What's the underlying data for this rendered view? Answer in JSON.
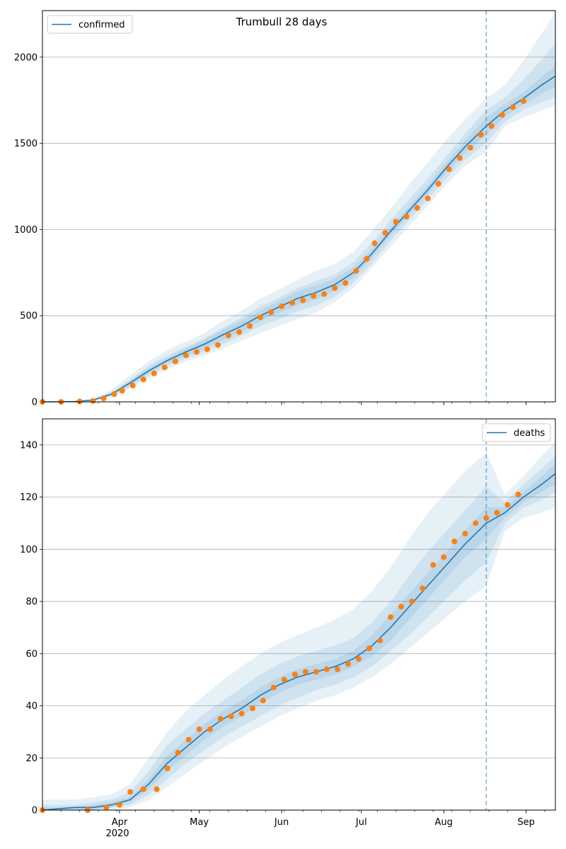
{
  "title": "Trumbull 28 days",
  "colors": {
    "model_line": "#1f77b4",
    "observed": "#ff7f0e",
    "band": "#1f77b4",
    "grid": "#b0b0b0",
    "forecast_marker": "#1f77b4"
  },
  "x_axis": {
    "tick_labels": [
      "Apr",
      "May",
      "Jun",
      "Jul",
      "Aug",
      "Sep"
    ],
    "year_label": "2020"
  },
  "chart_data": [
    {
      "type": "line",
      "legend": "confirmed",
      "legend_position": "top-left",
      "x_range": [
        "2020-03-03",
        "2020-09-12"
      ],
      "ylim": [
        0,
        2270
      ],
      "yticks": [
        0,
        500,
        1000,
        1500,
        2000
      ],
      "grid": "horizontal",
      "forecast_start": "2020-08-17",
      "model": {
        "x": [
          "2020-03-03",
          "2020-03-15",
          "2020-03-22",
          "2020-03-29",
          "2020-04-05",
          "2020-04-12",
          "2020-04-19",
          "2020-04-26",
          "2020-05-03",
          "2020-05-10",
          "2020-05-17",
          "2020-05-24",
          "2020-05-31",
          "2020-06-07",
          "2020-06-14",
          "2020-06-21",
          "2020-06-28",
          "2020-07-05",
          "2020-07-12",
          "2020-07-19",
          "2020-07-26",
          "2020-08-02",
          "2020-08-09",
          "2020-08-17",
          "2020-08-24",
          "2020-08-31",
          "2020-09-07",
          "2020-09-12"
        ],
        "y": [
          0,
          2,
          10,
          45,
          110,
          180,
          240,
          290,
          335,
          390,
          440,
          500,
          550,
          600,
          635,
          680,
          750,
          860,
          990,
          1110,
          1230,
          1360,
          1480,
          1600,
          1690,
          1760,
          1840,
          1890
        ],
        "bands": [
          {
            "lower": [
              0,
              0,
              5,
              25,
              75,
              135,
              190,
              235,
              270,
              310,
              355,
              400,
              440,
              480,
              520,
              580,
              660,
              780,
              900,
              1020,
              1140,
              1260,
              1370,
              1450,
              1600,
              1650,
              1690,
              1720
            ],
            "upper": [
              0,
              4,
              20,
              70,
              155,
              235,
              300,
              350,
              400,
              470,
              530,
              600,
              650,
              710,
              760,
              800,
              870,
              990,
              1120,
              1260,
              1390,
              1520,
              1640,
              1760,
              1840,
              1980,
              2140,
              2260
            ]
          },
          {
            "lower": [
              0,
              1,
              7,
              32,
              88,
              152,
              208,
              253,
              290,
              335,
              385,
              440,
              480,
              525,
              560,
              610,
              690,
              805,
              935,
              1055,
              1175,
              1295,
              1405,
              1505,
              1625,
              1695,
              1740,
              1770
            ],
            "upper": [
              0,
              3,
              15,
              58,
              130,
              210,
              270,
              320,
              370,
              430,
              490,
              555,
              605,
              660,
              700,
              740,
              810,
              925,
              1055,
              1175,
              1295,
              1425,
              1555,
              1695,
              1765,
              1870,
              1990,
              2080
            ]
          },
          {
            "lower": [
              0,
              1,
              8,
              38,
              98,
              166,
              224,
              271,
              310,
              360,
              410,
              470,
              515,
              560,
              595,
              645,
              720,
              835,
              965,
              1085,
              1205,
              1330,
              1445,
              1550,
              1655,
              1725,
              1790,
              1830
            ],
            "upper": [
              0,
              2,
              12,
              52,
              122,
              194,
              256,
              309,
              360,
              420,
              470,
              530,
              585,
              640,
              675,
              715,
              780,
              885,
              1015,
              1135,
              1255,
              1390,
              1515,
              1650,
              1725,
              1795,
              1890,
              1950
            ]
          }
        ]
      },
      "observed": {
        "x": [
          "2020-03-03",
          "2020-03-10",
          "2020-03-17",
          "2020-03-22",
          "2020-03-26",
          "2020-03-30",
          "2020-04-02",
          "2020-04-06",
          "2020-04-10",
          "2020-04-14",
          "2020-04-18",
          "2020-04-22",
          "2020-04-26",
          "2020-04-30",
          "2020-05-04",
          "2020-05-08",
          "2020-05-12",
          "2020-05-16",
          "2020-05-20",
          "2020-05-24",
          "2020-05-28",
          "2020-06-01",
          "2020-06-05",
          "2020-06-09",
          "2020-06-13",
          "2020-06-17",
          "2020-06-21",
          "2020-06-25",
          "2020-06-29",
          "2020-07-03",
          "2020-07-06",
          "2020-07-10",
          "2020-07-14",
          "2020-07-18",
          "2020-07-22",
          "2020-07-26",
          "2020-07-30",
          "2020-08-03",
          "2020-08-07",
          "2020-08-11",
          "2020-08-15",
          "2020-08-19",
          "2020-08-23",
          "2020-08-27",
          "2020-08-31"
        ],
        "y": [
          0,
          0,
          2,
          5,
          20,
          45,
          65,
          95,
          130,
          165,
          200,
          235,
          270,
          290,
          305,
          330,
          385,
          405,
          440,
          490,
          520,
          555,
          575,
          590,
          615,
          625,
          660,
          690,
          760,
          830,
          920,
          980,
          1045,
          1075,
          1125,
          1180,
          1265,
          1350,
          1415,
          1475,
          1550,
          1600,
          1665,
          1710,
          1745
        ]
      }
    },
    {
      "type": "line",
      "legend": "deaths",
      "legend_position": "top-right",
      "x_range": [
        "2020-03-03",
        "2020-09-12"
      ],
      "ylim": [
        0,
        150
      ],
      "yticks": [
        0,
        20,
        40,
        60,
        80,
        100,
        120,
        140
      ],
      "grid": "horizontal",
      "forecast_start": "2020-08-17",
      "model": {
        "x": [
          "2020-03-03",
          "2020-03-15",
          "2020-03-22",
          "2020-03-29",
          "2020-04-05",
          "2020-04-12",
          "2020-04-19",
          "2020-04-26",
          "2020-05-03",
          "2020-05-10",
          "2020-05-17",
          "2020-05-24",
          "2020-05-31",
          "2020-06-07",
          "2020-06-14",
          "2020-06-21",
          "2020-06-28",
          "2020-07-05",
          "2020-07-12",
          "2020-07-19",
          "2020-07-26",
          "2020-08-02",
          "2020-08-09",
          "2020-08-17",
          "2020-08-24",
          "2020-08-31",
          "2020-09-07",
          "2020-09-12"
        ],
        "y": [
          0,
          1,
          1,
          2,
          4,
          10,
          18,
          24,
          30,
          35,
          39,
          44,
          48,
          51,
          53,
          55,
          58,
          63,
          70,
          78,
          86,
          94,
          102,
          110,
          114,
          120,
          125,
          129
        ],
        "bands": [
          {
            "lower": [
              0,
              0,
              0,
              0,
              1,
              4,
              9,
              14,
              19,
              24,
              28,
              32,
              36,
              39,
              42,
              44,
              47,
              51,
              56,
              62,
              68,
              74,
              80,
              86,
              107,
              112,
              114,
              116
            ],
            "upper": [
              4,
              4,
              5,
              6,
              10,
              20,
              30,
              38,
              44,
              50,
              55,
              60,
              64,
              67,
              70,
              73,
              77,
              84,
              93,
              104,
              114,
              122,
              130,
              137,
              121,
              128,
              136,
              141
            ]
          },
          {
            "lower": [
              0,
              0,
              0,
              1,
              2,
              6,
              12,
              18,
              23,
              28,
              32,
              36,
              40,
              43,
              46,
              48,
              51,
              55,
              61,
              67,
              74,
              81,
              88,
              95,
              110,
              116,
              119,
              122
            ],
            "upper": [
              2,
              2,
              3,
              4,
              7,
              15,
              25,
              31,
              37,
              42,
              47,
              52,
              56,
              59,
              61,
              63,
              66,
              72,
              80,
              90,
              99,
              107,
              115,
              124,
              118,
              125,
              131,
              136
            ]
          },
          {
            "lower": [
              0,
              0,
              0,
              1,
              3,
              8,
              15,
              21,
              27,
              32,
              36,
              41,
              45,
              48,
              50,
              52,
              55,
              59,
              65,
              73,
              81,
              89,
              97,
              104,
              112,
              118,
              122,
              125
            ],
            "upper": [
              1,
              1,
              2,
              3,
              5,
              12,
              21,
              27,
              33,
              38,
              42,
              47,
              51,
              54,
              56,
              58,
              61,
              67,
              75,
              83,
              91,
              99,
              107,
              116,
              116,
              122,
              128,
              133
            ]
          }
        ]
      },
      "observed": {
        "x": [
          "2020-03-03",
          "2020-03-20",
          "2020-03-27",
          "2020-04-01",
          "2020-04-05",
          "2020-04-10",
          "2020-04-15",
          "2020-04-19",
          "2020-04-23",
          "2020-04-27",
          "2020-05-01",
          "2020-05-05",
          "2020-05-09",
          "2020-05-13",
          "2020-05-17",
          "2020-05-21",
          "2020-05-25",
          "2020-05-29",
          "2020-06-02",
          "2020-06-06",
          "2020-06-10",
          "2020-06-14",
          "2020-06-18",
          "2020-06-22",
          "2020-06-26",
          "2020-06-30",
          "2020-07-04",
          "2020-07-08",
          "2020-07-12",
          "2020-07-16",
          "2020-07-20",
          "2020-07-24",
          "2020-07-28",
          "2020-08-01",
          "2020-08-05",
          "2020-08-09",
          "2020-08-13",
          "2020-08-17",
          "2020-08-21",
          "2020-08-25",
          "2020-08-29"
        ],
        "y": [
          0,
          0,
          1,
          2,
          7,
          8,
          8,
          16,
          22,
          27,
          31,
          31,
          35,
          36,
          37,
          39,
          42,
          47,
          50,
          52,
          53,
          53,
          54,
          54,
          56,
          58,
          62,
          65,
          74,
          78,
          80,
          85,
          94,
          97,
          103,
          106,
          110,
          112,
          114,
          117,
          121
        ]
      }
    }
  ]
}
